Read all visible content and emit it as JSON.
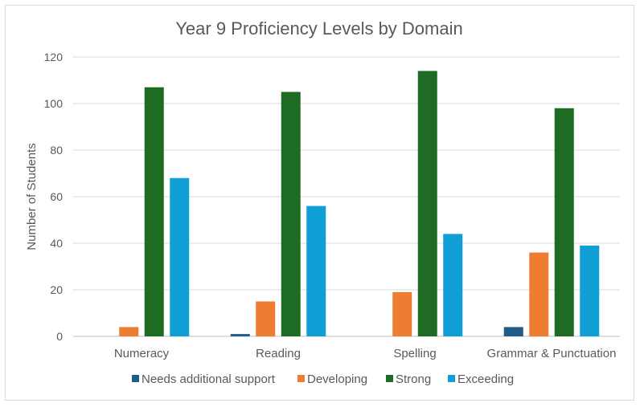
{
  "chart_data": {
    "type": "bar",
    "title": "Year 9 Proficiency Levels by Domain",
    "xlabel": "",
    "ylabel": "Number of Students",
    "ylim": [
      0,
      120
    ],
    "yticks": [
      0,
      20,
      40,
      60,
      80,
      100,
      120
    ],
    "grid": true,
    "legend_position": "bottom",
    "categories": [
      "Numeracy",
      "Reading",
      "Spelling",
      "Grammar & Punctuation"
    ],
    "series": [
      {
        "name": "Needs additional support",
        "color": "#1F5C87",
        "values": [
          0,
          1,
          0,
          4
        ]
      },
      {
        "name": "Developing",
        "color": "#ED7D31",
        "values": [
          4,
          15,
          19,
          36
        ]
      },
      {
        "name": "Strong",
        "color": "#1E6B24",
        "values": [
          107,
          105,
          114,
          98
        ]
      },
      {
        "name": "Exceeding",
        "color": "#0F9ED5",
        "values": [
          68,
          56,
          44,
          39
        ]
      }
    ]
  }
}
